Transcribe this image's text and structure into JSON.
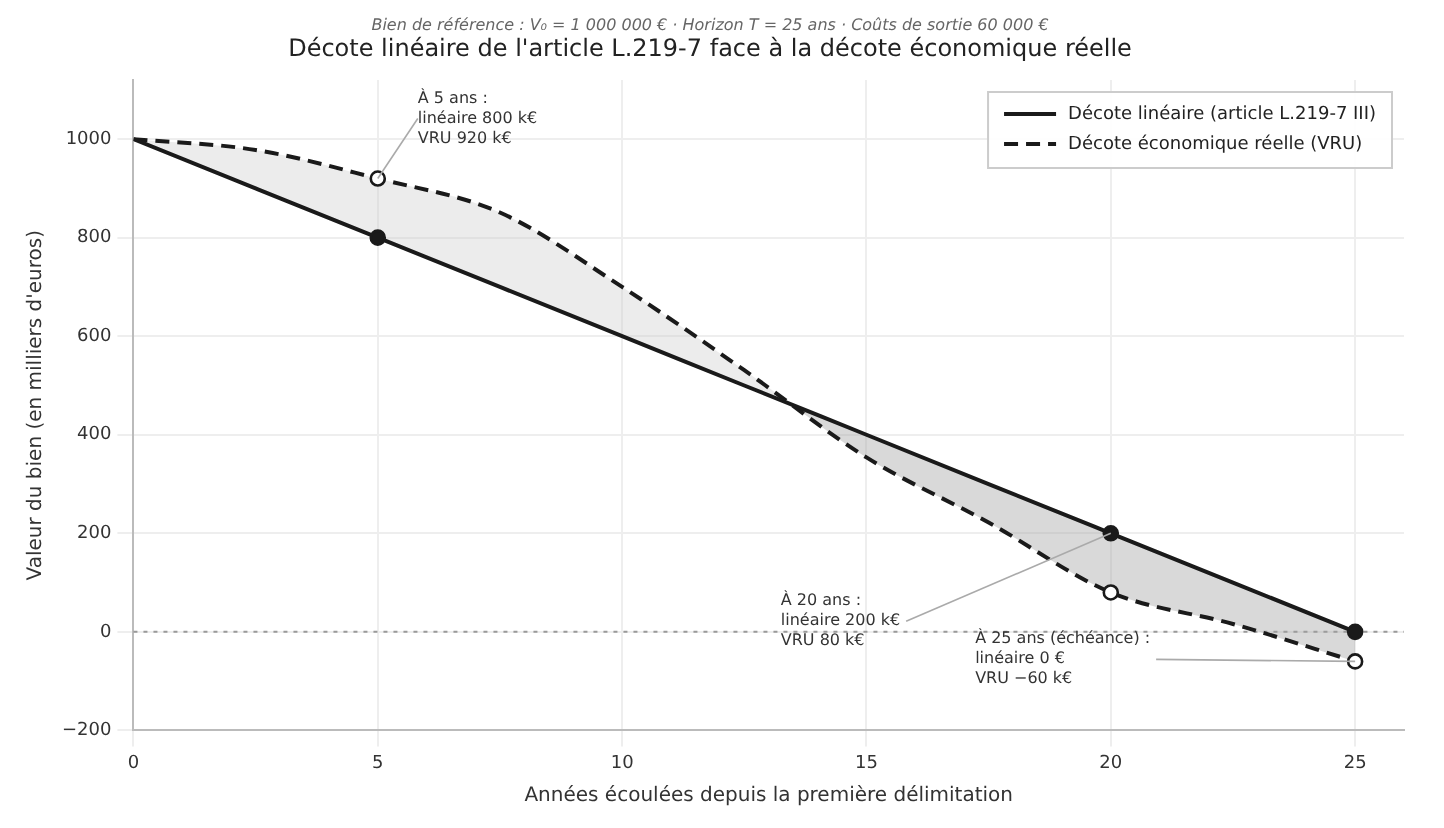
{
  "chart_data": {
    "type": "line",
    "subtitle": "Bien de référence : V₀ = 1 000 000 € · Horizon T = 25 ans · Coûts de sortie 60 000 €",
    "title": "Décote linéaire de l'article L.219-7 face à la décote économique réelle",
    "xlabel": "Années écoulées depuis la première délimitation",
    "ylabel": "Valeur du bien (en milliers d'euros)",
    "series": [
      {
        "name": "Décote linéaire (article L.219-7 III)",
        "color": "#1a1a1a",
        "line_style": "solid",
        "marker": "none",
        "x": [
          0,
          2.5,
          5,
          7.5,
          10,
          12.5,
          15,
          17.5,
          20,
          22.5,
          25
        ],
        "values": [
          1000,
          900,
          800,
          700,
          600,
          500,
          400,
          300,
          200,
          100,
          0
        ]
      },
      {
        "name": "Décote économique réelle (VRU)",
        "color": "#1a1a1a",
        "line_style": "dashed",
        "marker": "none",
        "x": [
          0,
          2.5,
          5,
          7.5,
          10,
          12.5,
          15,
          17.5,
          20,
          22.5,
          25
        ],
        "values": [
          1000,
          978,
          920,
          851,
          700,
          531,
          354,
          222,
          80,
          16,
          -60
        ]
      },
      {
        "type": "scatter",
        "color": "#1a1a1a",
        "marker": "circle",
        "x": [
          5,
          20,
          25
        ],
        "values": [
          800,
          200,
          0
        ]
      },
      {
        "type": "scatter",
        "color": "#1a1a1a",
        "marker": "circle",
        "x": [
          5,
          20,
          25
        ],
        "values": [
          920,
          80,
          -60
        ]
      }
    ],
    "xlim": [
      0,
      26
    ],
    "xticks": [
      0,
      5,
      10,
      15,
      20,
      25
    ],
    "ylim": [
      -200,
      1120
    ],
    "yticks": [
      -200,
      0,
      200,
      400,
      600,
      800,
      1000
    ],
    "grid": true,
    "legend": "top right",
    "ref_lines": [
      {
        "axis": "y",
        "value": 0,
        "color": "#999999",
        "line_style": "dotted"
      }
    ],
    "annotations": [
      {
        "text": "À 5 ans :\nlinéaire 800 k€\nVRU 920 k€",
        "x": 5,
        "y": 920
      },
      {
        "text": "À 20 ans :\nlinéaire 200 k€\nVRU 80 k€",
        "x": 20,
        "y": 200
      },
      {
        "text": "À 25 ans (échéance) :\nlinéaire 0 €\nVRU −60 k€",
        "x": 25,
        "y": -60
      }
    ]
  }
}
